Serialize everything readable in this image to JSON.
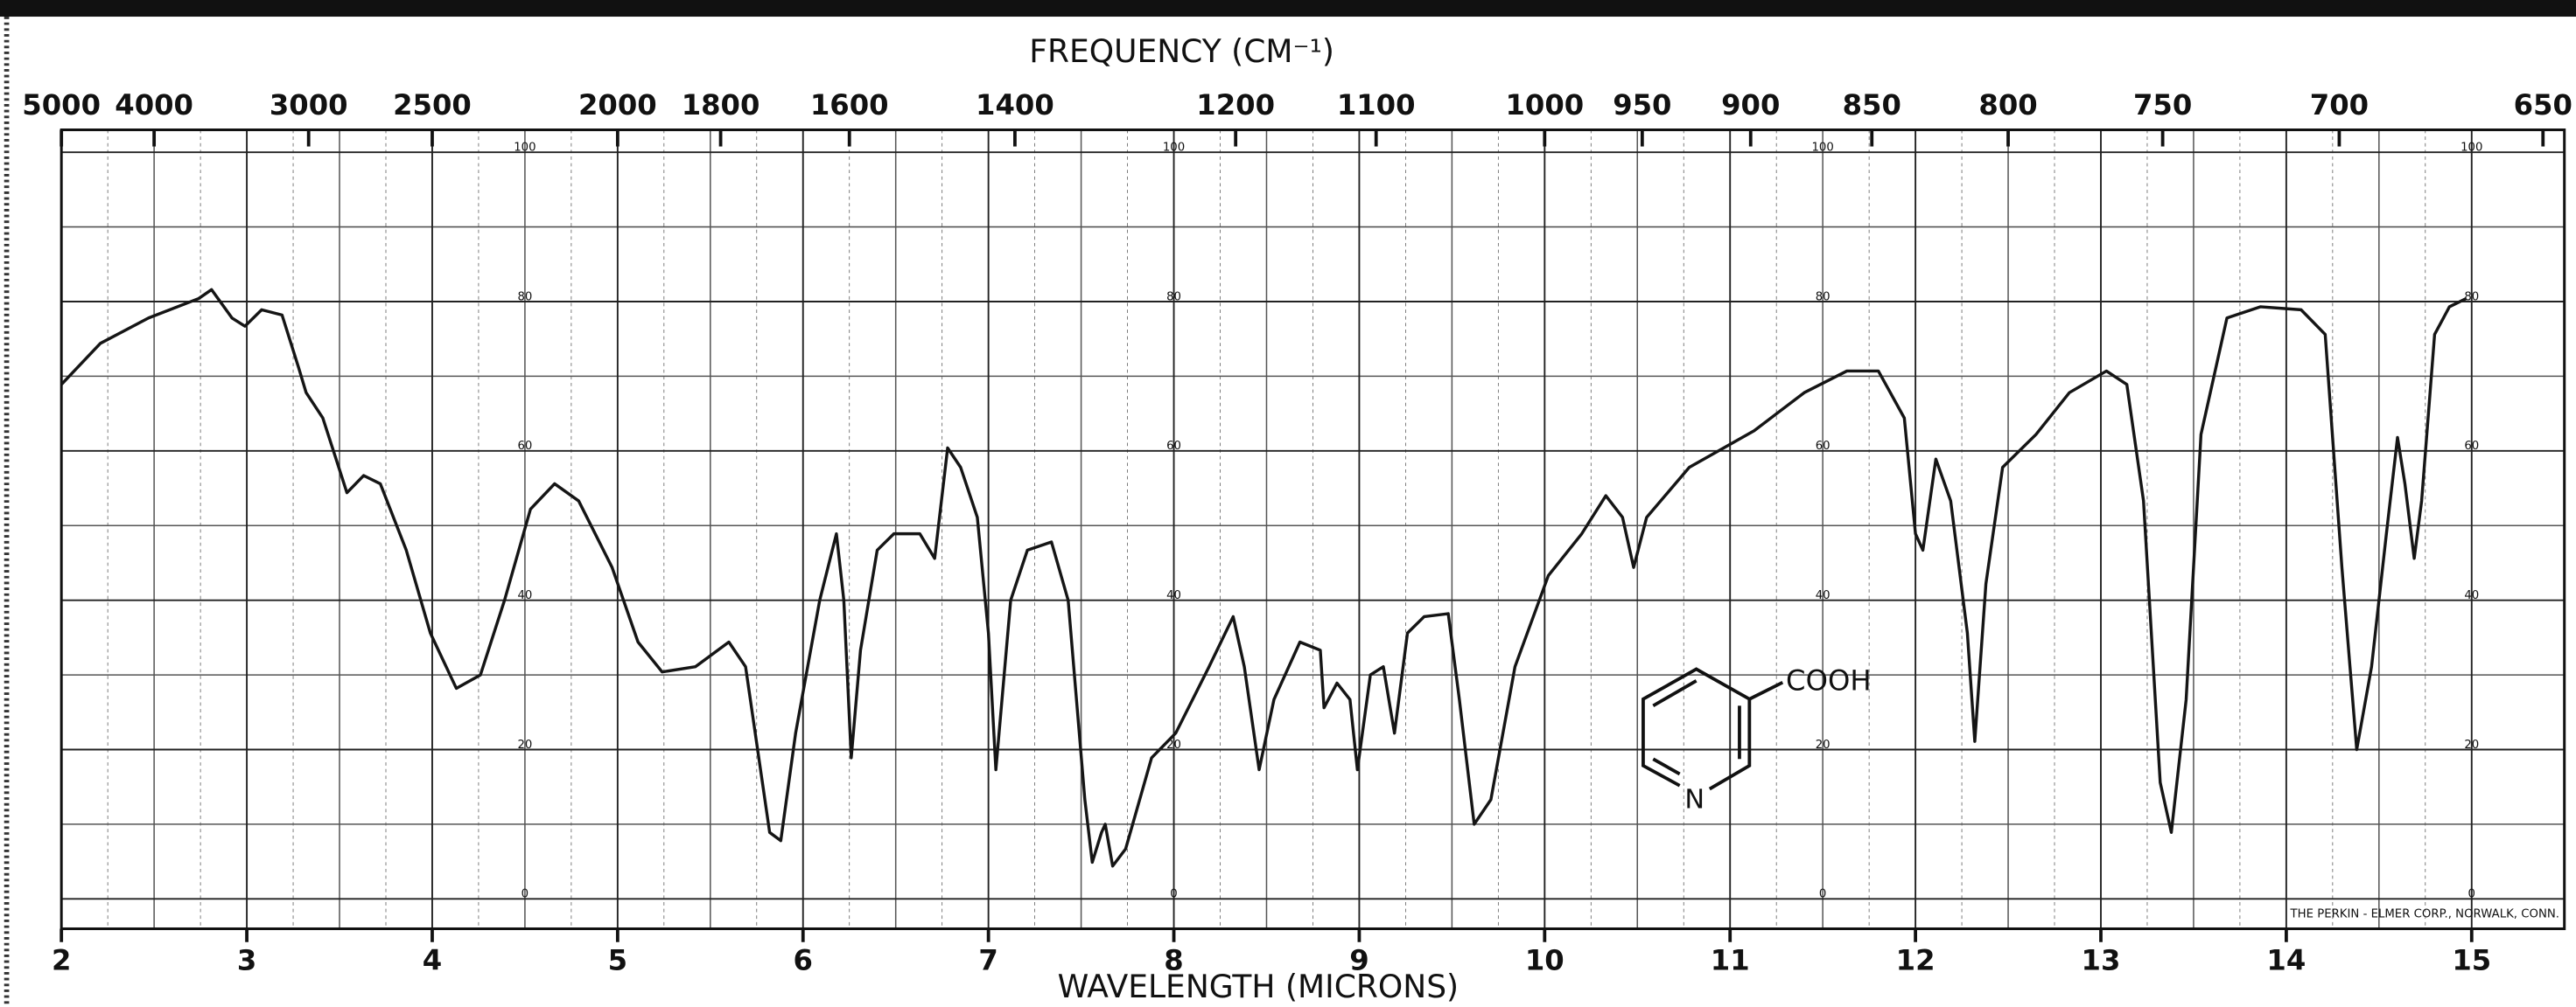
{
  "chart_data": {
    "type": "line",
    "title": "FREQUENCY (CM⁻¹)",
    "x_label": "WAVELENGTH (MICRONS)",
    "annotations": [
      "THE PERKIN - ELMER CORP., NORWALK, CONN.",
      "COOH",
      "N"
    ],
    "color": "#151515",
    "xlim": [
      2,
      15.5
    ],
    "ylim": [
      -4,
      103
    ],
    "xticks": [
      2,
      3,
      4,
      5,
      6,
      7,
      8,
      9,
      10,
      11,
      12,
      13,
      14,
      15
    ],
    "yticks": [
      0,
      20,
      40,
      60,
      80,
      100
    ],
    "x2ticks": [
      5000,
      4000,
      3000,
      2500,
      2000,
      1800,
      1600,
      1400,
      1200,
      1100,
      1000,
      950,
      900,
      850,
      800,
      750,
      700,
      650
    ],
    "grid": true,
    "x": [
      2.0,
      2.21,
      2.47,
      2.74,
      2.81,
      2.92,
      2.99,
      3.08,
      3.19,
      3.28,
      3.32,
      3.41,
      3.54,
      3.63,
      3.72,
      3.86,
      3.99,
      4.13,
      4.26,
      4.39,
      4.53,
      4.66,
      4.79,
      4.97,
      5.11,
      5.24,
      5.42,
      5.6,
      5.69,
      5.82,
      5.88,
      5.96,
      6.09,
      6.18,
      6.22,
      6.26,
      6.31,
      6.4,
      6.49,
      6.63,
      6.71,
      6.78,
      6.85,
      6.94,
      7.0,
      7.04,
      7.12,
      7.21,
      7.34,
      7.43,
      7.52,
      7.56,
      7.61,
      7.63,
      7.67,
      7.74,
      7.88,
      8.01,
      8.19,
      8.32,
      8.38,
      8.46,
      8.54,
      8.68,
      8.79,
      8.81,
      8.88,
      8.95,
      8.99,
      9.06,
      9.13,
      9.19,
      9.26,
      9.35,
      9.48,
      9.54,
      9.62,
      9.71,
      9.84,
      10.02,
      10.2,
      10.33,
      10.42,
      10.48,
      10.55,
      10.78,
      11.13,
      11.4,
      11.63,
      11.8,
      11.94,
      12.0,
      12.04,
      12.11,
      12.19,
      12.28,
      12.32,
      12.38,
      12.47,
      12.65,
      12.83,
      13.03,
      13.14,
      13.23,
      13.32,
      13.38,
      13.46,
      13.54,
      13.68,
      13.86,
      14.08,
      14.21,
      14.3,
      14.38,
      14.46,
      14.54,
      14.6,
      14.64,
      14.69,
      14.73,
      14.8,
      14.88,
      14.97
    ],
    "values": [
      68.9,
      74.4,
      77.8,
      80.4,
      81.6,
      77.8,
      76.7,
      78.9,
      78.2,
      71.1,
      67.8,
      64.4,
      54.4,
      56.7,
      55.6,
      46.7,
      35.6,
      28.2,
      30,
      40,
      52.2,
      55.6,
      53.3,
      44.4,
      34.4,
      30.4,
      31.1,
      34.4,
      31.1,
      8.9,
      7.8,
      22.2,
      40,
      48.9,
      40,
      18.9,
      33.3,
      46.7,
      48.9,
      48.9,
      45.6,
      60.4,
      57.8,
      51.1,
      35.6,
      17.3,
      40,
      46.7,
      47.8,
      40,
      13.3,
      4.9,
      8.9,
      10,
      4.4,
      6.7,
      18.9,
      22.2,
      31.1,
      37.8,
      31.1,
      17.3,
      26.7,
      34.4,
      33.3,
      25.6,
      28.9,
      26.7,
      17.3,
      30,
      31.1,
      22.2,
      35.6,
      37.8,
      38.2,
      26.7,
      10,
      13.3,
      31.1,
      43.3,
      48.9,
      54,
      51.1,
      44.4,
      51.1,
      57.8,
      62.7,
      67.8,
      70.7,
      70.7,
      64.4,
      48.9,
      46.7,
      58.9,
      53.3,
      35.6,
      21.1,
      42.2,
      57.8,
      62.2,
      67.8,
      70.7,
      68.9,
      53.3,
      15.6,
      8.9,
      26.7,
      62.2,
      77.8,
      79.3,
      78.9,
      75.6,
      44.4,
      20,
      31.1,
      48.9,
      61.8,
      55.6,
      45.6,
      53.3,
      75.6,
      79.3,
      80.4
    ]
  }
}
